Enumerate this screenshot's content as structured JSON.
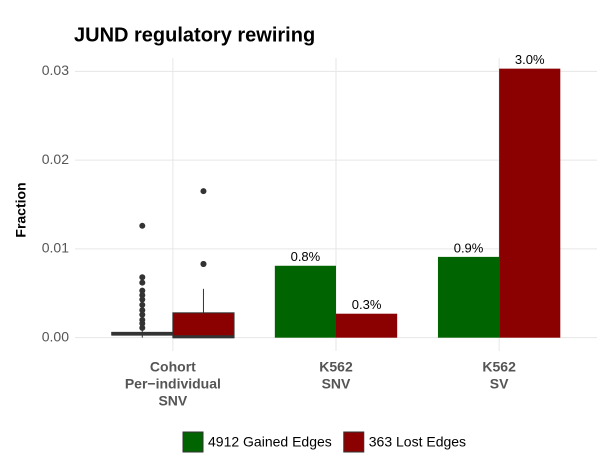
{
  "chart_data": {
    "type": "bar",
    "title": "JUND regulatory rewiring",
    "y_label": "Fraction",
    "categories": [
      [
        "Cohort",
        "Per−individual",
        "SNV"
      ],
      [
        "K562",
        "SNV"
      ],
      [
        "K562",
        "SV"
      ]
    ],
    "ylim": [
      -0.0015,
      0.0315
    ],
    "yticks": [
      {
        "value": 0,
        "label": "0.00"
      },
      0.01,
      0.02,
      0.03
    ],
    "grid": true,
    "legend": "bottom",
    "series": [
      {
        "name": "4912 Gained Edges",
        "color": "#006400",
        "values": [
          null,
          0.0081,
          0.0091
        ],
        "value_labels": [
          null,
          "0.8%",
          "0.9%"
        ],
        "box": {
          "min": 0,
          "q1": 0.0003,
          "median": 0.0004,
          "q3": 0.0006,
          "max": 0.001,
          "outliers": [
            0.0126,
            0.0068,
            0.0062,
            0.0053,
            0.0048,
            0.0043,
            0.0037,
            0.0031,
            0.0026,
            0.002,
            0.0016,
            0.0011
          ]
        }
      },
      {
        "name": "363 Lost Edges",
        "color": "#8b0000",
        "values": [
          null,
          0.0027,
          0.0303
        ],
        "value_labels": [
          null,
          "0.3%",
          "3.0%"
        ],
        "box": {
          "min": 0,
          "q1": 0,
          "median": 0.0001,
          "q3": 0.0028,
          "max": 0.0055,
          "outliers": [
            0.0083,
            0.0083,
            0.0165
          ]
        }
      }
    ]
  }
}
